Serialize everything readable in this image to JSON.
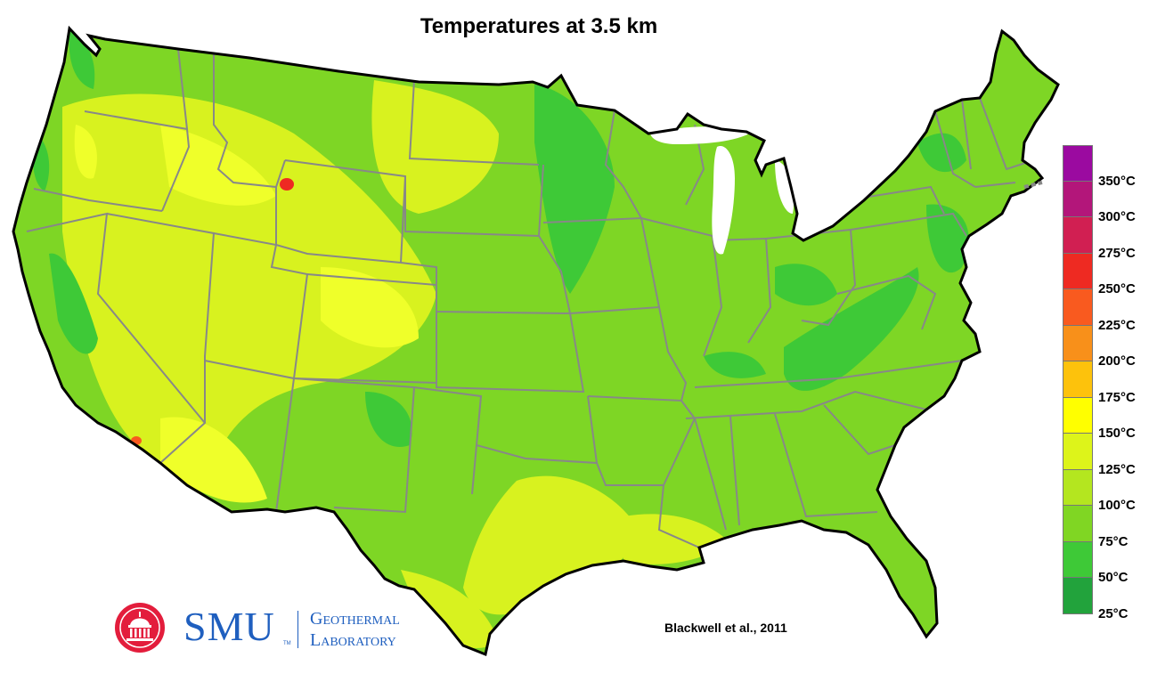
{
  "title": "Temperatures at 3.5 km",
  "citation": "Blackwell et al., 2011",
  "logo": {
    "brand": "SMU",
    "tm": "TM",
    "line1": "Geothermal",
    "line2": "Laboratory"
  },
  "legend": {
    "labels": [
      "350°C",
      "300°C",
      "275°C",
      "250°C",
      "225°C",
      "200°C",
      "175°C",
      "150°C",
      "125°C",
      "100°C",
      "75°C",
      "50°C",
      "25°C"
    ],
    "colors": [
      "#9b0aa0",
      "#b3167a",
      "#d11f52",
      "#ee2a22",
      "#f95a1f",
      "#f8901a",
      "#fdc20c",
      "#ffff00",
      "#ddf41a",
      "#b4e61f",
      "#80d623",
      "#3ec937",
      "#22a33c"
    ]
  },
  "colors": {
    "base": "#7ed625",
    "state_border": "#888888",
    "outline": "#000000",
    "warm": "#d8f21f",
    "warmer": "#efff2a",
    "cool": "#3ec937",
    "hot": "#ee2a22"
  }
}
